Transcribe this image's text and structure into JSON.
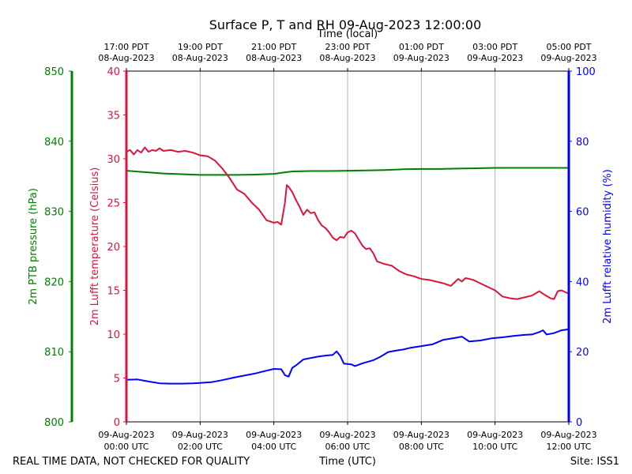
{
  "chart_data": {
    "type": "line",
    "title": "Surface P, T and RH 09-Aug-2023 12:00:00",
    "top_axis_label": "Time (local)",
    "xlabel": "Time (UTC)",
    "footer_left": "REAL TIME DATA, NOT CHECKED FOR QUALITY",
    "footer_right": "Site: ISS1",
    "x_range_hours": [
      0,
      12
    ],
    "x_ticks_bottom": [
      {
        "h": 0,
        "l1": "09-Aug-2023",
        "l2": "00:00 UTC"
      },
      {
        "h": 2,
        "l1": "09-Aug-2023",
        "l2": "02:00 UTC"
      },
      {
        "h": 4,
        "l1": "09-Aug-2023",
        "l2": "04:00 UTC"
      },
      {
        "h": 6,
        "l1": "09-Aug-2023",
        "l2": "06:00 UTC"
      },
      {
        "h": 8,
        "l1": "09-Aug-2023",
        "l2": "08:00 UTC"
      },
      {
        "h": 10,
        "l1": "09-Aug-2023",
        "l2": "10:00 UTC"
      },
      {
        "h": 12,
        "l1": "09-Aug-2023",
        "l2": "12:00 UTC"
      }
    ],
    "x_ticks_top": [
      {
        "h": 0,
        "l1": "17:00 PDT",
        "l2": "08-Aug-2023"
      },
      {
        "h": 2,
        "l1": "19:00 PDT",
        "l2": "08-Aug-2023"
      },
      {
        "h": 4,
        "l1": "21:00 PDT",
        "l2": "08-Aug-2023"
      },
      {
        "h": 6,
        "l1": "23:00 PDT",
        "l2": "08-Aug-2023"
      },
      {
        "h": 8,
        "l1": "01:00 PDT",
        "l2": "09-Aug-2023"
      },
      {
        "h": 10,
        "l1": "03:00 PDT",
        "l2": "09-Aug-2023"
      },
      {
        "h": 12,
        "l1": "05:00 PDT",
        "l2": "09-Aug-2023"
      }
    ],
    "grid": "vertical",
    "axes": {
      "pressure": {
        "label": "2m PTB pressure (hPa)",
        "ylim": [
          800,
          850
        ],
        "ticks": [
          800,
          810,
          820,
          830,
          840,
          850
        ],
        "color": "#008000"
      },
      "temperature": {
        "label": "2m Lufft temperature (Celsius)",
        "ylim": [
          0,
          40
        ],
        "ticks": [
          0,
          5,
          10,
          15,
          20,
          25,
          30,
          35,
          40
        ],
        "color": "#dc143c"
      },
      "humidity": {
        "label": "2m Lufft relative humidity (%)",
        "ylim": [
          0,
          100
        ],
        "ticks": [
          0,
          20,
          40,
          60,
          80,
          100
        ],
        "color": "#0000ff"
      }
    },
    "series": [
      {
        "axis": "pressure",
        "color": "#008000",
        "points": [
          [
            0,
            835.8
          ],
          [
            0.5,
            835.6
          ],
          [
            1,
            835.4
          ],
          [
            1.5,
            835.3
          ],
          [
            2,
            835.2
          ],
          [
            2.5,
            835.2
          ],
          [
            3,
            835.2
          ],
          [
            3.5,
            835.25
          ],
          [
            4,
            835.35
          ],
          [
            4.2,
            835.5
          ],
          [
            4.5,
            835.7
          ],
          [
            5,
            835.75
          ],
          [
            5.5,
            835.75
          ],
          [
            6,
            835.8
          ],
          [
            6.5,
            835.85
          ],
          [
            7,
            835.9
          ],
          [
            7.5,
            836.0
          ],
          [
            8,
            836.05
          ],
          [
            8.5,
            836.05
          ],
          [
            9,
            836.1
          ],
          [
            9.5,
            836.15
          ],
          [
            10,
            836.2
          ],
          [
            10.5,
            836.2
          ],
          [
            11,
            836.2
          ],
          [
            11.5,
            836.2
          ],
          [
            12,
            836.2
          ]
        ]
      },
      {
        "axis": "temperature",
        "color": "#dc143c",
        "points": [
          [
            0,
            30.8
          ],
          [
            0.1,
            31.0
          ],
          [
            0.2,
            30.5
          ],
          [
            0.3,
            31.0
          ],
          [
            0.4,
            30.7
          ],
          [
            0.5,
            31.3
          ],
          [
            0.6,
            30.8
          ],
          [
            0.7,
            31.0
          ],
          [
            0.8,
            30.9
          ],
          [
            0.9,
            31.2
          ],
          [
            1.0,
            30.9
          ],
          [
            1.2,
            31.0
          ],
          [
            1.4,
            30.8
          ],
          [
            1.6,
            30.9
          ],
          [
            1.8,
            30.7
          ],
          [
            2.0,
            30.4
          ],
          [
            2.2,
            30.3
          ],
          [
            2.4,
            29.8
          ],
          [
            2.6,
            28.9
          ],
          [
            2.8,
            27.8
          ],
          [
            3.0,
            26.5
          ],
          [
            3.2,
            26.0
          ],
          [
            3.4,
            25.0
          ],
          [
            3.6,
            24.2
          ],
          [
            3.8,
            23.0
          ],
          [
            4.0,
            22.7
          ],
          [
            4.1,
            22.8
          ],
          [
            4.2,
            22.5
          ],
          [
            4.3,
            25.0
          ],
          [
            4.35,
            27.0
          ],
          [
            4.4,
            26.8
          ],
          [
            4.5,
            26.2
          ],
          [
            4.6,
            25.3
          ],
          [
            4.7,
            24.5
          ],
          [
            4.8,
            23.6
          ],
          [
            4.9,
            24.2
          ],
          [
            5.0,
            23.8
          ],
          [
            5.1,
            23.9
          ],
          [
            5.2,
            23.0
          ],
          [
            5.3,
            22.4
          ],
          [
            5.4,
            22.1
          ],
          [
            5.5,
            21.6
          ],
          [
            5.6,
            21.0
          ],
          [
            5.7,
            20.7
          ],
          [
            5.8,
            21.1
          ],
          [
            5.9,
            21.0
          ],
          [
            6.0,
            21.6
          ],
          [
            6.1,
            21.8
          ],
          [
            6.2,
            21.5
          ],
          [
            6.3,
            20.8
          ],
          [
            6.4,
            20.1
          ],
          [
            6.5,
            19.7
          ],
          [
            6.6,
            19.8
          ],
          [
            6.7,
            19.2
          ],
          [
            6.8,
            18.3
          ],
          [
            7.0,
            18.0
          ],
          [
            7.2,
            17.8
          ],
          [
            7.4,
            17.2
          ],
          [
            7.6,
            16.8
          ],
          [
            7.8,
            16.6
          ],
          [
            8.0,
            16.3
          ],
          [
            8.2,
            16.2
          ],
          [
            8.4,
            16.0
          ],
          [
            8.6,
            15.8
          ],
          [
            8.8,
            15.5
          ],
          [
            9.0,
            16.3
          ],
          [
            9.1,
            16.0
          ],
          [
            9.2,
            16.4
          ],
          [
            9.4,
            16.2
          ],
          [
            9.6,
            15.8
          ],
          [
            9.8,
            15.4
          ],
          [
            10.0,
            15.0
          ],
          [
            10.2,
            14.3
          ],
          [
            10.4,
            14.1
          ],
          [
            10.6,
            14.0
          ],
          [
            10.8,
            14.2
          ],
          [
            11.0,
            14.4
          ],
          [
            11.2,
            14.9
          ],
          [
            11.3,
            14.6
          ],
          [
            11.5,
            14.1
          ],
          [
            11.6,
            14.0
          ],
          [
            11.7,
            14.9
          ],
          [
            11.8,
            15.0
          ],
          [
            12.0,
            14.6
          ]
        ]
      },
      {
        "axis": "humidity",
        "color": "#0000ff",
        "points": [
          [
            0,
            12.0
          ],
          [
            0.3,
            12.1
          ],
          [
            0.6,
            11.5
          ],
          [
            0.9,
            11.0
          ],
          [
            1.2,
            10.9
          ],
          [
            1.5,
            10.9
          ],
          [
            1.8,
            11.0
          ],
          [
            2.0,
            11.1
          ],
          [
            2.3,
            11.3
          ],
          [
            2.6,
            11.9
          ],
          [
            2.9,
            12.6
          ],
          [
            3.2,
            13.2
          ],
          [
            3.5,
            13.8
          ],
          [
            3.8,
            14.6
          ],
          [
            4.0,
            15.1
          ],
          [
            4.2,
            15.0
          ],
          [
            4.3,
            13.3
          ],
          [
            4.4,
            12.9
          ],
          [
            4.5,
            15.4
          ],
          [
            4.6,
            16.1
          ],
          [
            4.8,
            17.8
          ],
          [
            5.0,
            18.2
          ],
          [
            5.2,
            18.6
          ],
          [
            5.4,
            18.9
          ],
          [
            5.6,
            19.1
          ],
          [
            5.7,
            20.1
          ],
          [
            5.8,
            18.8
          ],
          [
            5.9,
            16.6
          ],
          [
            6.1,
            16.4
          ],
          [
            6.2,
            15.9
          ],
          [
            6.4,
            16.7
          ],
          [
            6.7,
            17.6
          ],
          [
            6.9,
            18.6
          ],
          [
            7.1,
            19.9
          ],
          [
            7.3,
            20.3
          ],
          [
            7.5,
            20.6
          ],
          [
            7.7,
            21.1
          ],
          [
            8.0,
            21.6
          ],
          [
            8.3,
            22.1
          ],
          [
            8.6,
            23.4
          ],
          [
            8.9,
            23.9
          ],
          [
            9.1,
            24.3
          ],
          [
            9.3,
            22.9
          ],
          [
            9.6,
            23.2
          ],
          [
            9.9,
            23.8
          ],
          [
            10.2,
            24.1
          ],
          [
            10.5,
            24.5
          ],
          [
            10.8,
            24.8
          ],
          [
            11.0,
            24.9
          ],
          [
            11.2,
            25.6
          ],
          [
            11.3,
            26.1
          ],
          [
            11.4,
            24.9
          ],
          [
            11.6,
            25.3
          ],
          [
            11.8,
            26.1
          ],
          [
            12.0,
            26.4
          ]
        ]
      }
    ]
  }
}
